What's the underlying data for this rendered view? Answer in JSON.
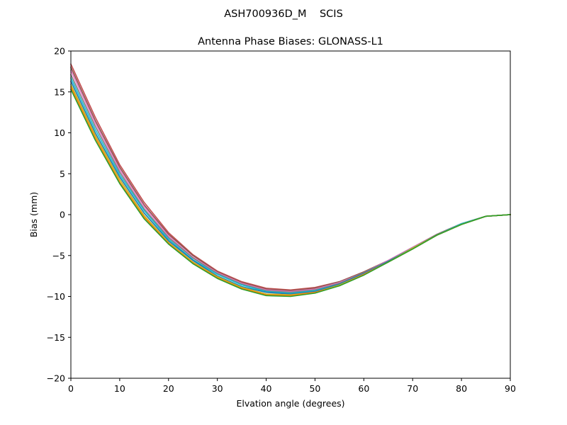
{
  "figure": {
    "suptitle": "ASH700936D_M    SCIS"
  },
  "chart_data": {
    "type": "line",
    "title": "Antenna Phase Biases: GLONASS-L1",
    "xlabel": "Elvation angle (degrees)",
    "ylabel": "Bias (mm)",
    "xlim": [
      0,
      90
    ],
    "ylim": [
      -20,
      20
    ],
    "xticks": [
      0,
      10,
      20,
      30,
      40,
      50,
      60,
      70,
      80,
      90
    ],
    "yticks": [
      -20,
      -15,
      -10,
      -5,
      0,
      5,
      10,
      15,
      20
    ],
    "ytick_labels": [
      "−20",
      "−15",
      "−10",
      "−5",
      "0",
      "5",
      "10",
      "15",
      "20"
    ],
    "grid": false,
    "legend": "none",
    "x": [
      0,
      5,
      10,
      15,
      20,
      25,
      30,
      35,
      40,
      45,
      50,
      55,
      60,
      65,
      70,
      75,
      80,
      85,
      90
    ],
    "series": [
      {
        "color": "#c44e52",
        "values": [
          18.4,
          11.9,
          6.1,
          1.5,
          -2.2,
          -4.9,
          -6.9,
          -8.2,
          -9.0,
          -9.2,
          -8.9,
          -8.2,
          -7.0,
          -5.6,
          -4.0,
          -2.4,
          -1.1,
          -0.2,
          0.0
        ]
      },
      {
        "color": "#8c564b",
        "values": [
          18.0,
          11.5,
          5.8,
          1.2,
          -2.4,
          -5.0,
          -7.0,
          -8.3,
          -9.1,
          -9.3,
          -9.0,
          -8.2,
          -7.0,
          -5.6,
          -4.0,
          -2.4,
          -1.1,
          -0.2,
          0.0
        ]
      },
      {
        "color": "#e377c2",
        "values": [
          17.6,
          11.2,
          5.5,
          1.0,
          -2.6,
          -5.2,
          -7.1,
          -8.4,
          -9.2,
          -9.4,
          -9.1,
          -8.3,
          -7.1,
          -5.6,
          -4.0,
          -2.4,
          -1.1,
          -0.2,
          0.0
        ]
      },
      {
        "color": "#7f7f7f",
        "values": [
          17.1,
          10.8,
          5.2,
          0.7,
          -2.8,
          -5.3,
          -7.2,
          -8.5,
          -9.3,
          -9.5,
          -9.2,
          -8.4,
          -7.1,
          -5.7,
          -4.1,
          -2.4,
          -1.1,
          -0.2,
          0.0
        ]
      },
      {
        "color": "#17becf",
        "values": [
          16.7,
          10.4,
          4.9,
          0.5,
          -3.0,
          -5.5,
          -7.3,
          -8.6,
          -9.4,
          -9.6,
          -9.3,
          -8.5,
          -7.2,
          -5.7,
          -4.1,
          -2.5,
          -1.1,
          -0.2,
          0.0
        ]
      },
      {
        "color": "#1f77b4",
        "values": [
          16.3,
          10.0,
          4.6,
          0.2,
          -3.2,
          -5.6,
          -7.5,
          -8.8,
          -9.5,
          -9.7,
          -9.4,
          -8.5,
          -7.2,
          -5.7,
          -4.1,
          -2.5,
          -1.2,
          -0.2,
          0.0
        ]
      },
      {
        "color": "#bcbd22",
        "values": [
          15.9,
          9.7,
          4.3,
          -0.1,
          -3.4,
          -5.8,
          -7.6,
          -8.9,
          -9.7,
          -9.8,
          -9.5,
          -8.6,
          -7.3,
          -5.8,
          -4.1,
          -2.5,
          -1.2,
          -0.2,
          0.0
        ]
      },
      {
        "color": "#ff7f0e",
        "values": [
          15.6,
          9.4,
          4.0,
          -0.3,
          -3.5,
          -5.9,
          -7.7,
          -9.0,
          -9.8,
          -9.9,
          -9.5,
          -8.7,
          -7.3,
          -5.8,
          -4.2,
          -2.5,
          -1.2,
          -0.2,
          0.0
        ]
      },
      {
        "color": "#2ca02c",
        "values": [
          15.3,
          9.1,
          3.8,
          -0.5,
          -3.6,
          -6.0,
          -7.8,
          -9.1,
          -9.9,
          -10.0,
          -9.6,
          -8.7,
          -7.4,
          -5.8,
          -4.2,
          -2.5,
          -1.2,
          -0.2,
          0.0
        ]
      }
    ]
  }
}
